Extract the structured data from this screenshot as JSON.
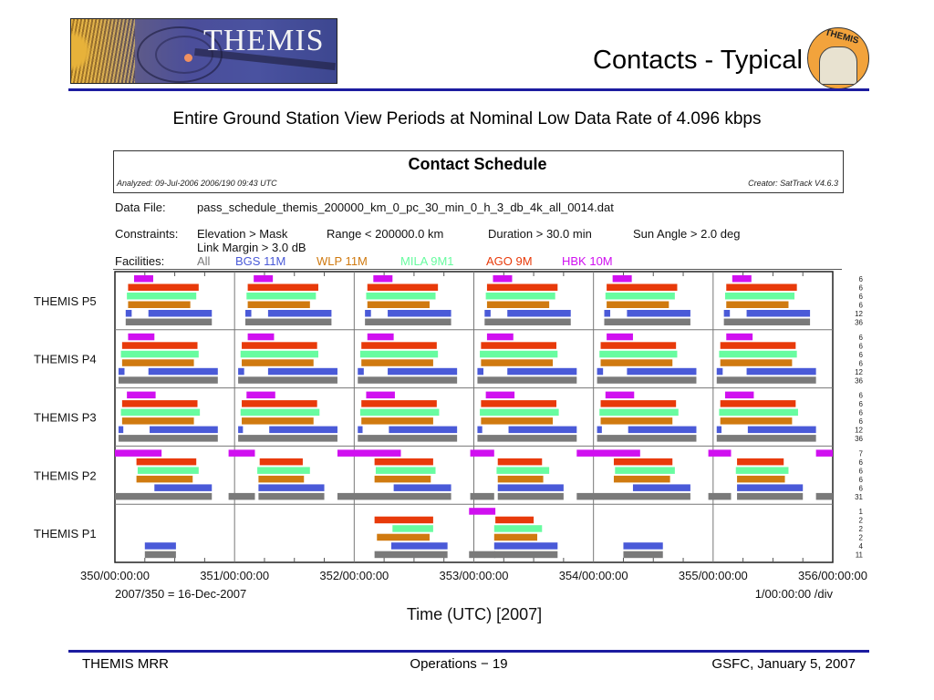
{
  "header": {
    "logo_text": "THEMIS",
    "title": "Contacts - Typical",
    "emblem_text": "THEMIS"
  },
  "subtitle": "Entire Ground Station View Periods at Nominal Low Data Rate of 4.096 kbps",
  "schedule": {
    "title": "Contact Schedule",
    "analyzed": "Analyzed:  09-Jul-2006  2006/190  09:43 UTC",
    "creator": "Creator: SatTrack V4.6.3",
    "data_file_label": "Data File:",
    "data_file": "pass_schedule_themis_200000_km_0_pc_30_min_0_h_3_db_4k_all_0014.dat",
    "constraints_label": "Constraints:",
    "constraints_line1": [
      "Elevation > Mask",
      "Range < 200000.0 km",
      "Duration > 30.0 min",
      "Sun Angle > 2.0 deg"
    ],
    "constraints_line2": "Link Margin > 3.0 dB",
    "facilities_label": "Facilities:"
  },
  "footer": {
    "left": "THEMIS MRR",
    "center": "Operations − 19",
    "right": "GSFC, January 5, 2007"
  },
  "chart_data": {
    "type": "gantt",
    "title": "Contact Schedule",
    "xlabel": "Time (UTC) [2007]",
    "x_range": [
      350,
      356
    ],
    "x_unit": "day-of-year 2007",
    "x_ticks": [
      "350/00:00:00",
      "351/00:00:00",
      "352/00:00:00",
      "353/00:00:00",
      "354/00:00:00",
      "355/00:00:00",
      "356/00:00:00"
    ],
    "x_note_left": "2007/350 = 16-Dec-2007",
    "x_note_right": "1/00:00:00 /div",
    "grid": true,
    "facilities": [
      {
        "key": "HBK",
        "name": "HBK 10M",
        "color": "#d010f0"
      },
      {
        "key": "AGO",
        "name": "AGO 9M",
        "color": "#e83a0a"
      },
      {
        "key": "MILA",
        "name": "MILA 9M1",
        "color": "#68fca0"
      },
      {
        "key": "WLP",
        "name": "WLP 11M",
        "color": "#d07a10"
      },
      {
        "key": "BGS",
        "name": "BGS 11M",
        "color": "#4a5ad8"
      },
      {
        "key": "All",
        "name": "All",
        "color": "#7a7a7a"
      }
    ],
    "legend_order": [
      "All",
      "BGS",
      "WLP",
      "MILA",
      "AGO",
      "HBK"
    ],
    "rows": [
      {
        "label": "THEMIS P5",
        "counts": [
          6,
          6,
          6,
          6,
          12,
          36
        ],
        "tracks": {
          "HBK": [
            [
              350.16,
              350.32
            ],
            [
              351.16,
              351.32
            ],
            [
              352.16,
              352.32
            ],
            [
              353.16,
              353.32
            ],
            [
              354.16,
              354.32
            ],
            [
              355.16,
              355.32
            ]
          ],
          "AGO": [
            [
              350.11,
              350.7
            ],
            [
              351.11,
              351.7
            ],
            [
              352.11,
              352.7
            ],
            [
              353.11,
              353.7
            ],
            [
              354.11,
              354.7
            ],
            [
              355.11,
              355.7
            ]
          ],
          "MILA": [
            [
              350.1,
              350.68
            ],
            [
              351.1,
              351.68
            ],
            [
              352.1,
              352.68
            ],
            [
              353.1,
              353.68
            ],
            [
              354.1,
              354.68
            ],
            [
              355.1,
              355.68
            ]
          ],
          "WLP": [
            [
              350.11,
              350.63
            ],
            [
              351.11,
              351.63
            ],
            [
              352.11,
              352.63
            ],
            [
              353.11,
              353.63
            ],
            [
              354.11,
              354.63
            ],
            [
              355.11,
              355.63
            ]
          ],
          "BGS": [
            [
              350.09,
              350.14
            ],
            [
              350.28,
              350.81
            ],
            [
              351.09,
              351.14
            ],
            [
              351.28,
              351.81
            ],
            [
              352.09,
              352.14
            ],
            [
              352.28,
              352.81
            ],
            [
              353.09,
              353.14
            ],
            [
              353.28,
              353.81
            ],
            [
              354.09,
              354.14
            ],
            [
              354.28,
              354.81
            ],
            [
              355.09,
              355.14
            ],
            [
              355.28,
              355.81
            ]
          ],
          "All": [
            [
              350.09,
              350.81
            ],
            [
              351.09,
              351.81
            ],
            [
              352.09,
              352.81
            ],
            [
              353.09,
              353.81
            ],
            [
              354.09,
              354.81
            ],
            [
              355.09,
              355.81
            ]
          ]
        }
      },
      {
        "label": "THEMIS P4",
        "counts": [
          6,
          6,
          6,
          6,
          12,
          36
        ],
        "tracks": {
          "HBK": [
            [
              350.11,
              350.33
            ],
            [
              351.11,
              351.33
            ],
            [
              352.11,
              352.33
            ],
            [
              353.11,
              353.33
            ],
            [
              354.11,
              354.33
            ],
            [
              355.11,
              355.33
            ]
          ],
          "AGO": [
            [
              350.06,
              350.69
            ],
            [
              351.06,
              351.69
            ],
            [
              352.06,
              352.69
            ],
            [
              353.06,
              353.69
            ],
            [
              354.06,
              354.69
            ],
            [
              355.06,
              355.69
            ]
          ],
          "MILA": [
            [
              350.05,
              350.7
            ],
            [
              351.05,
              351.7
            ],
            [
              352.05,
              352.7
            ],
            [
              353.05,
              353.7
            ],
            [
              354.05,
              354.7
            ],
            [
              355.05,
              355.7
            ]
          ],
          "WLP": [
            [
              350.06,
              350.66
            ],
            [
              351.06,
              351.66
            ],
            [
              352.06,
              352.66
            ],
            [
              353.06,
              353.66
            ],
            [
              354.06,
              354.66
            ],
            [
              355.06,
              355.66
            ]
          ],
          "BGS": [
            [
              350.03,
              350.08
            ],
            [
              350.28,
              350.86
            ],
            [
              351.03,
              351.08
            ],
            [
              351.28,
              351.86
            ],
            [
              352.03,
              352.08
            ],
            [
              352.28,
              352.86
            ],
            [
              353.03,
              353.08
            ],
            [
              353.28,
              353.86
            ],
            [
              354.03,
              354.08
            ],
            [
              354.28,
              354.86
            ],
            [
              355.03,
              355.08
            ],
            [
              355.28,
              355.86
            ]
          ],
          "All": [
            [
              350.03,
              350.86
            ],
            [
              351.03,
              351.86
            ],
            [
              352.03,
              352.86
            ],
            [
              353.03,
              353.86
            ],
            [
              354.03,
              354.86
            ],
            [
              355.03,
              355.86
            ]
          ]
        }
      },
      {
        "label": "THEMIS P3",
        "counts": [
          6,
          6,
          6,
          6,
          12,
          36
        ],
        "tracks": {
          "HBK": [
            [
              350.1,
              350.34
            ],
            [
              351.1,
              351.34
            ],
            [
              352.1,
              352.34
            ],
            [
              353.1,
              353.34
            ],
            [
              354.1,
              354.34
            ],
            [
              355.1,
              355.34
            ]
          ],
          "AGO": [
            [
              350.06,
              350.69
            ],
            [
              351.06,
              351.69
            ],
            [
              352.06,
              352.69
            ],
            [
              353.06,
              353.69
            ],
            [
              354.06,
              354.69
            ],
            [
              355.06,
              355.69
            ]
          ],
          "MILA": [
            [
              350.05,
              350.71
            ],
            [
              351.05,
              351.71
            ],
            [
              352.05,
              352.71
            ],
            [
              353.05,
              353.71
            ],
            [
              354.05,
              354.71
            ],
            [
              355.05,
              355.71
            ]
          ],
          "WLP": [
            [
              350.06,
              350.66
            ],
            [
              351.06,
              351.66
            ],
            [
              352.06,
              352.66
            ],
            [
              353.06,
              353.66
            ],
            [
              354.06,
              354.66
            ],
            [
              355.06,
              355.66
            ]
          ],
          "BGS": [
            [
              350.03,
              350.07
            ],
            [
              350.29,
              350.86
            ],
            [
              351.03,
              351.07
            ],
            [
              351.29,
              351.86
            ],
            [
              352.03,
              352.07
            ],
            [
              352.29,
              352.86
            ],
            [
              353.03,
              353.07
            ],
            [
              353.29,
              353.86
            ],
            [
              354.03,
              354.07
            ],
            [
              354.29,
              354.86
            ],
            [
              355.03,
              355.07
            ],
            [
              355.29,
              355.86
            ]
          ],
          "All": [
            [
              350.03,
              350.86
            ],
            [
              351.03,
              351.86
            ],
            [
              352.03,
              352.86
            ],
            [
              353.03,
              353.86
            ],
            [
              354.03,
              354.86
            ],
            [
              355.03,
              355.86
            ]
          ]
        }
      },
      {
        "label": "THEMIS P2",
        "counts": [
          7,
          6,
          6,
          6,
          6,
          31
        ],
        "tracks": {
          "HBK": [
            [
              350.0,
              350.39
            ],
            [
              350.95,
              351.17
            ],
            [
              351.86,
              352.39
            ],
            [
              352.97,
              353.17
            ],
            [
              353.86,
              354.39
            ],
            [
              354.96,
              355.15
            ],
            [
              355.86,
              356.0
            ]
          ],
          "AGO": [
            [
              350.18,
              350.68
            ],
            [
              351.21,
              351.57
            ],
            [
              352.17,
              352.66
            ],
            [
              353.2,
              353.57
            ],
            [
              354.17,
              354.66
            ],
            [
              355.2,
              355.59
            ]
          ],
          "MILA": [
            [
              350.19,
              350.7
            ],
            [
              351.19,
              351.63
            ],
            [
              352.18,
              352.68
            ],
            [
              353.19,
              353.63
            ],
            [
              354.18,
              354.68
            ],
            [
              355.19,
              355.63
            ]
          ],
          "WLP": [
            [
              350.18,
              350.65
            ],
            [
              351.2,
              351.58
            ],
            [
              352.17,
              352.64
            ],
            [
              353.2,
              353.58
            ],
            [
              354.17,
              354.64
            ],
            [
              355.2,
              355.6
            ]
          ],
          "BGS": [
            [
              350.33,
              350.81
            ],
            [
              351.2,
              351.75
            ],
            [
              352.33,
              352.81
            ],
            [
              353.2,
              353.75
            ],
            [
              354.33,
              354.81
            ],
            [
              355.2,
              355.75
            ]
          ],
          "All": [
            [
              350.0,
              350.81
            ],
            [
              350.95,
              351.17
            ],
            [
              351.2,
              351.75
            ],
            [
              351.86,
              352.81
            ],
            [
              352.97,
              353.17
            ],
            [
              353.2,
              353.75
            ],
            [
              353.86,
              354.81
            ],
            [
              354.96,
              355.15
            ],
            [
              355.2,
              355.75
            ],
            [
              355.86,
              356.0
            ]
          ]
        }
      },
      {
        "label": "THEMIS P1",
        "counts": [
          1,
          2,
          2,
          2,
          4,
          11
        ],
        "tracks": {
          "HBK": [
            [
              352.96,
              353.18
            ]
          ],
          "AGO": [
            [
              352.17,
              352.66
            ],
            [
              353.18,
              353.5
            ]
          ],
          "MILA": [
            [
              352.32,
              352.66
            ],
            [
              353.17,
              353.57
            ]
          ],
          "WLP": [
            [
              352.19,
              352.63
            ],
            [
              353.17,
              353.53
            ]
          ],
          "BGS": [
            [
              350.25,
              350.51
            ],
            [
              352.31,
              352.78
            ],
            [
              353.17,
              353.7
            ],
            [
              354.25,
              354.58
            ]
          ],
          "All": [
            [
              350.25,
              350.51
            ],
            [
              352.17,
              352.78
            ],
            [
              352.96,
              353.18
            ],
            [
              353.17,
              353.7
            ],
            [
              354.25,
              354.58
            ]
          ]
        }
      }
    ]
  }
}
